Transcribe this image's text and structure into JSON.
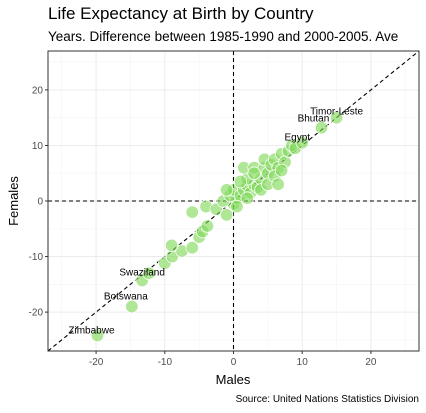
{
  "chart_data": {
    "type": "scatter",
    "title": "Life Expectancy at Birth by Country",
    "subtitle": "Years. Difference between 1985-1990 and 2000-2005. Ave",
    "xlabel": "Males",
    "ylabel": "Females",
    "caption": "Source: United Nations Statistics Division",
    "xlim": [
      -27,
      27
    ],
    "ylim": [
      -27,
      27
    ],
    "x_ticks": [
      -20,
      -10,
      0,
      10,
      20
    ],
    "y_ticks": [
      -20,
      -10,
      0,
      10,
      20
    ],
    "x_tick_labels": [
      "-20",
      "-10",
      "0",
      "10",
      "20"
    ],
    "y_tick_labels": [
      "-20",
      "-10",
      "0",
      "10",
      "20"
    ],
    "grid": true,
    "point_color": "#7ed957",
    "reference_lines": [
      "x = 0",
      "y = 0",
      "y = x"
    ],
    "points": [
      {
        "x": -19.8,
        "y": -24.2
      },
      {
        "x": -14.8,
        "y": -19.0
      },
      {
        "x": -13.3,
        "y": -14.3
      },
      {
        "x": -12.3,
        "y": -13.0
      },
      {
        "x": -10.0,
        "y": -11.2
      },
      {
        "x": -8.9,
        "y": -10.0
      },
      {
        "x": -7.5,
        "y": -9.0
      },
      {
        "x": -6.0,
        "y": -8.4
      },
      {
        "x": -9.0,
        "y": -8.0
      },
      {
        "x": -5.0,
        "y": -6.5
      },
      {
        "x": -4.5,
        "y": -5.5
      },
      {
        "x": -3.8,
        "y": -4.5
      },
      {
        "x": -6.0,
        "y": -2.0
      },
      {
        "x": -4.0,
        "y": -1.0
      },
      {
        "x": -2.5,
        "y": -1.5
      },
      {
        "x": -1.0,
        "y": -2.5
      },
      {
        "x": 0.0,
        "y": -0.5
      },
      {
        "x": 0.5,
        "y": 0.5
      },
      {
        "x": -1.5,
        "y": 0.0
      },
      {
        "x": -0.5,
        "y": 1.0
      },
      {
        "x": 0.0,
        "y": 2.0
      },
      {
        "x": 1.0,
        "y": 1.0
      },
      {
        "x": 1.5,
        "y": 2.0
      },
      {
        "x": 2.0,
        "y": 2.8
      },
      {
        "x": 2.5,
        "y": 1.5
      },
      {
        "x": 3.0,
        "y": 3.0
      },
      {
        "x": 3.5,
        "y": 2.5
      },
      {
        "x": 2.0,
        "y": 4.0
      },
      {
        "x": 1.5,
        "y": 6.0
      },
      {
        "x": 3.0,
        "y": 6.0
      },
      {
        "x": 4.0,
        "y": 4.0
      },
      {
        "x": 4.5,
        "y": 6.0
      },
      {
        "x": 4.5,
        "y": 7.5
      },
      {
        "x": 5.0,
        "y": 5.0
      },
      {
        "x": 5.5,
        "y": 6.5
      },
      {
        "x": 6.0,
        "y": 7.5
      },
      {
        "x": 6.5,
        "y": 6.0
      },
      {
        "x": 7.0,
        "y": 8.5
      },
      {
        "x": 7.5,
        "y": 7.0
      },
      {
        "x": 8.0,
        "y": 9.0
      },
      {
        "x": 8.5,
        "y": 10.0
      },
      {
        "x": 9.0,
        "y": 9.5
      },
      {
        "x": 10.0,
        "y": 10.5
      },
      {
        "x": 4.0,
        "y": 2.0
      },
      {
        "x": 5.0,
        "y": 3.0
      },
      {
        "x": 6.0,
        "y": 4.5
      },
      {
        "x": 3.0,
        "y": 5.0
      },
      {
        "x": 1.0,
        "y": 3.5
      },
      {
        "x": -1.0,
        "y": 2.0
      },
      {
        "x": 0.5,
        "y": -1.0
      },
      {
        "x": 2.0,
        "y": 0.5
      },
      {
        "x": 6.5,
        "y": 3.0
      },
      {
        "x": 7.0,
        "y": 5.5
      },
      {
        "x": 12.8,
        "y": 13.2
      },
      {
        "x": 15.0,
        "y": 15.0
      }
    ],
    "annotations": [
      {
        "text": "Timor-Leste",
        "x": 15.0,
        "y": 15.0
      },
      {
        "text": "Bhutan",
        "x": 12.8,
        "y": 13.2
      },
      {
        "text": "Egypt",
        "x": 8.7,
        "y": 10.0
      },
      {
        "text": "Swaziland",
        "x": -13.3,
        "y": -14.3
      },
      {
        "text": "Botswana",
        "x": -14.8,
        "y": -19.0
      },
      {
        "text": "Zimbabwe",
        "x": -19.8,
        "y": -24.2
      }
    ]
  }
}
